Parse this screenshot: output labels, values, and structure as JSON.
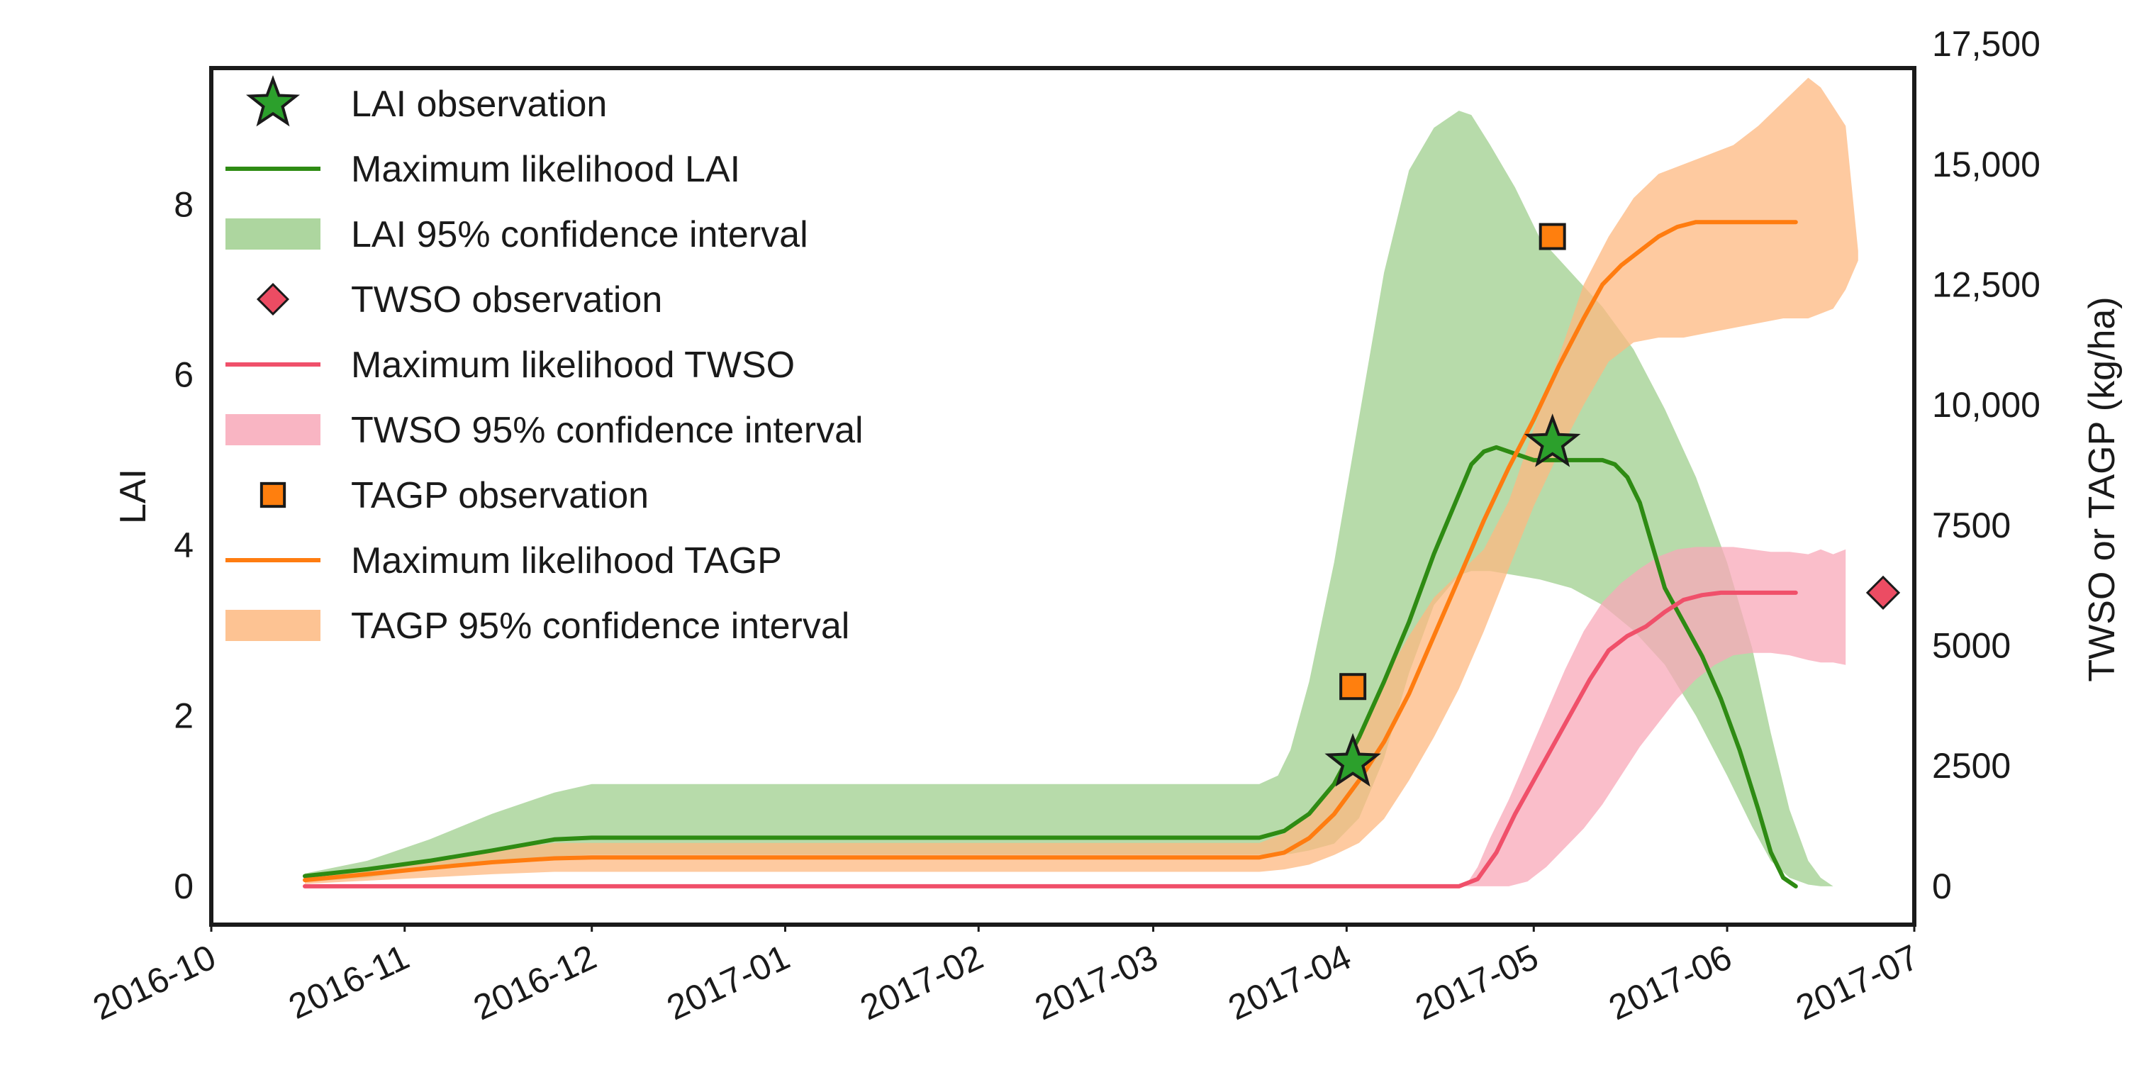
{
  "chart_data": {
    "type": "line",
    "title": "",
    "xlabel": "",
    "ylabel": "LAI",
    "ylabel_right": "TWSO or TAGP (kg/ha)",
    "x_unit": "days since 2016-10-01",
    "xlim": [
      0,
      273
    ],
    "ylim": [
      -0.45,
      9.6
    ],
    "ylim_right": [
      -797,
      17000
    ],
    "x_ticks": [
      {
        "label": "2016-10",
        "day": 0
      },
      {
        "label": "2016-11",
        "day": 31
      },
      {
        "label": "2016-12",
        "day": 61
      },
      {
        "label": "2017-01",
        "day": 92
      },
      {
        "label": "2017-02",
        "day": 123
      },
      {
        "label": "2017-03",
        "day": 151
      },
      {
        "label": "2017-04",
        "day": 182
      },
      {
        "label": "2017-05",
        "day": 212
      },
      {
        "label": "2017-06",
        "day": 243
      },
      {
        "label": "2017-07",
        "day": 273
      }
    ],
    "y_ticks": [
      {
        "label": "0",
        "value": 0
      },
      {
        "label": "2",
        "value": 2
      },
      {
        "label": "4",
        "value": 4
      },
      {
        "label": "6",
        "value": 6
      },
      {
        "label": "8",
        "value": 8
      }
    ],
    "y_ticks_right": [
      {
        "label": "0",
        "value": 0
      },
      {
        "label": "2500",
        "value": 2500
      },
      {
        "label": "5000",
        "value": 5000
      },
      {
        "label": "7500",
        "value": 7500
      },
      {
        "label": "10,000",
        "value": 10000
      },
      {
        "label": "12,500",
        "value": 12500
      },
      {
        "label": "15,000",
        "value": 15000
      },
      {
        "label": "17,500",
        "value": 17500
      }
    ],
    "colors": {
      "lai": "#2e8b13",
      "lai_band": "#9fcf8e",
      "twso": "#f0506a",
      "twso_band": "#f8a8b8",
      "tagp": "#ff7c10",
      "tagp_band": "#fdb880",
      "lai_obs": "#2ca02c",
      "twso_obs": "#ec4c63",
      "tagp_obs": "#ff7f0e"
    },
    "series": [
      {
        "name": "LAI 95% confidence interval",
        "kind": "band",
        "axis": "left",
        "color_key": "lai_band",
        "x": [
          15,
          25,
          35,
          45,
          55,
          61,
          100,
          168,
          171,
          173,
          176,
          180,
          184,
          188,
          192,
          196,
          200,
          202,
          205,
          209,
          213,
          218,
          223,
          228,
          233,
          238,
          243,
          247,
          250,
          253,
          256,
          258,
          260,
          262
        ],
        "upper": [
          0.15,
          0.3,
          0.55,
          0.85,
          1.1,
          1.2,
          1.2,
          1.2,
          1.3,
          1.6,
          2.4,
          3.8,
          5.5,
          7.2,
          8.4,
          8.9,
          9.1,
          9.05,
          8.7,
          8.2,
          7.6,
          7.2,
          6.8,
          6.3,
          5.6,
          4.8,
          3.8,
          2.8,
          1.8,
          0.9,
          0.3,
          0.1,
          0.0,
          0.0
        ],
        "lower": [
          0.05,
          0.1,
          0.2,
          0.3,
          0.35,
          0.37,
          0.37,
          0.37,
          0.37,
          0.38,
          0.42,
          0.5,
          0.8,
          1.5,
          2.5,
          3.3,
          3.65,
          3.7,
          3.7,
          3.65,
          3.6,
          3.5,
          3.3,
          3.0,
          2.6,
          2.0,
          1.3,
          0.7,
          0.3,
          0.1,
          0.02,
          0.0,
          0.0,
          0.0
        ]
      },
      {
        "name": "TAGP 95% confidence interval",
        "kind": "band",
        "axis": "right",
        "color_key": "tagp_band",
        "x": [
          15,
          30,
          45,
          55,
          61,
          100,
          168,
          172,
          176,
          180,
          184,
          188,
          192,
          196,
          200,
          204,
          208,
          212,
          216,
          220,
          224,
          228,
          232,
          236,
          240,
          244,
          248,
          252,
          256,
          258,
          260,
          262,
          264
        ],
        "upper": [
          200,
          450,
          750,
          900,
          900,
          900,
          900,
          1100,
          1500,
          2200,
          3200,
          4300,
          5200,
          6000,
          6500,
          7000,
          8000,
          9500,
          11000,
          12500,
          13500,
          14300,
          14800,
          15000,
          15200,
          15400,
          15800,
          16300,
          16800,
          16600,
          16200,
          15800,
          13200
        ],
        "lower": [
          50,
          150,
          250,
          300,
          300,
          300,
          300,
          350,
          450,
          650,
          900,
          1400,
          2200,
          3100,
          4100,
          5300,
          6600,
          7900,
          9000,
          10000,
          10900,
          11300,
          11400,
          11400,
          11500,
          11600,
          11700,
          11800,
          11800,
          11900,
          12000,
          12400,
          13000
        ]
      },
      {
        "name": "TWSO 95% confidence interval",
        "kind": "band",
        "axis": "right",
        "color_key": "twso_band",
        "x": [
          201,
          203,
          205,
          208,
          211,
          214,
          217,
          220,
          223,
          226,
          229,
          232,
          235,
          238,
          241,
          244,
          247,
          250,
          253,
          256,
          258,
          260,
          262
        ],
        "upper": [
          0,
          400,
          1000,
          1800,
          2700,
          3600,
          4500,
          5300,
          5900,
          6300,
          6600,
          6850,
          7000,
          7050,
          7050,
          7050,
          7000,
          6950,
          6950,
          6900,
          7000,
          6900,
          7000
        ],
        "lower": [
          0,
          0,
          0,
          0,
          100,
          400,
          800,
          1200,
          1700,
          2300,
          2900,
          3400,
          3900,
          4300,
          4600,
          4800,
          4850,
          4850,
          4800,
          4700,
          4650,
          4650,
          4600
        ]
      },
      {
        "name": "Maximum likelihood LAI",
        "kind": "line",
        "axis": "left",
        "color_key": "lai",
        "x": [
          15,
          25,
          35,
          45,
          55,
          61,
          100,
          168,
          172,
          176,
          180,
          184,
          188,
          192,
          196,
          200,
          202,
          204,
          206,
          208,
          212,
          216,
          219,
          221,
          223,
          225,
          227,
          229,
          231,
          233,
          236,
          239,
          242,
          245,
          248,
          250,
          252,
          254
        ],
        "values": [
          0.12,
          0.2,
          0.3,
          0.42,
          0.55,
          0.57,
          0.57,
          0.57,
          0.65,
          0.85,
          1.2,
          1.75,
          2.4,
          3.1,
          3.9,
          4.6,
          4.95,
          5.1,
          5.15,
          5.1,
          5.0,
          5.0,
          5.0,
          5.0,
          5.0,
          4.95,
          4.8,
          4.5,
          4.0,
          3.5,
          3.1,
          2.7,
          2.2,
          1.6,
          0.9,
          0.4,
          0.1,
          0.0
        ]
      },
      {
        "name": "Maximum likelihood TAGP",
        "kind": "line",
        "axis": "right",
        "color_key": "tagp",
        "x": [
          15,
          25,
          35,
          45,
          55,
          61,
          100,
          168,
          172,
          176,
          180,
          184,
          188,
          192,
          196,
          200,
          204,
          208,
          212,
          216,
          220,
          223,
          226,
          229,
          232,
          235,
          238,
          241,
          244,
          247,
          250,
          254
        ],
        "values": [
          130,
          250,
          380,
          500,
          580,
          600,
          600,
          600,
          700,
          1000,
          1500,
          2200,
          3000,
          4000,
          5200,
          6400,
          7600,
          8700,
          9700,
          10800,
          11800,
          12500,
          12900,
          13200,
          13500,
          13700,
          13800,
          13800,
          13800,
          13800,
          13800,
          13800
        ]
      },
      {
        "name": "Maximum likelihood TWSO",
        "kind": "line",
        "axis": "right",
        "color_key": "twso",
        "x": [
          15,
          200,
          203,
          206,
          209,
          212,
          215,
          218,
          221,
          224,
          227,
          230,
          233,
          236,
          239,
          242,
          245,
          248,
          251,
          254
        ],
        "values": [
          0,
          0,
          150,
          700,
          1500,
          2200,
          2900,
          3600,
          4300,
          4900,
          5200,
          5400,
          5700,
          5950,
          6050,
          6100,
          6100,
          6100,
          6100,
          6100
        ]
      },
      {
        "name": "LAI observation",
        "kind": "scatter",
        "axis": "left",
        "marker": "star",
        "color_key": "lai_obs",
        "x": [
          183,
          215
        ],
        "values": [
          1.45,
          5.2
        ]
      },
      {
        "name": "TWSO observation",
        "kind": "scatter",
        "axis": "right",
        "marker": "diamond",
        "color_key": "twso_obs",
        "x": [
          268
        ],
        "values": [
          6100
        ]
      },
      {
        "name": "TAGP observation",
        "kind": "scatter",
        "axis": "right",
        "marker": "square",
        "color_key": "tagp_obs",
        "x": [
          183,
          215
        ],
        "values": [
          4150,
          13500
        ]
      }
    ],
    "legend": {
      "position": "top-left",
      "entries": [
        {
          "label": "LAI observation",
          "marker": "star",
          "color_key": "lai_obs"
        },
        {
          "label": "Maximum likelihood LAI",
          "marker": "line",
          "color_key": "lai"
        },
        {
          "label": "LAI 95% confidence interval",
          "marker": "patch",
          "color_key": "lai_band"
        },
        {
          "label": "TWSO observation",
          "marker": "diamond",
          "color_key": "twso_obs"
        },
        {
          "label": "Maximum likelihood TWSO",
          "marker": "line",
          "color_key": "twso"
        },
        {
          "label": "TWSO 95% confidence interval",
          "marker": "patch",
          "color_key": "twso_band"
        },
        {
          "label": "TAGP observation",
          "marker": "square",
          "color_key": "tagp_obs"
        },
        {
          "label": "Maximum likelihood TAGP",
          "marker": "line",
          "color_key": "tagp"
        },
        {
          "label": "TAGP 95% confidence interval",
          "marker": "patch",
          "color_key": "tagp_band"
        }
      ]
    }
  }
}
